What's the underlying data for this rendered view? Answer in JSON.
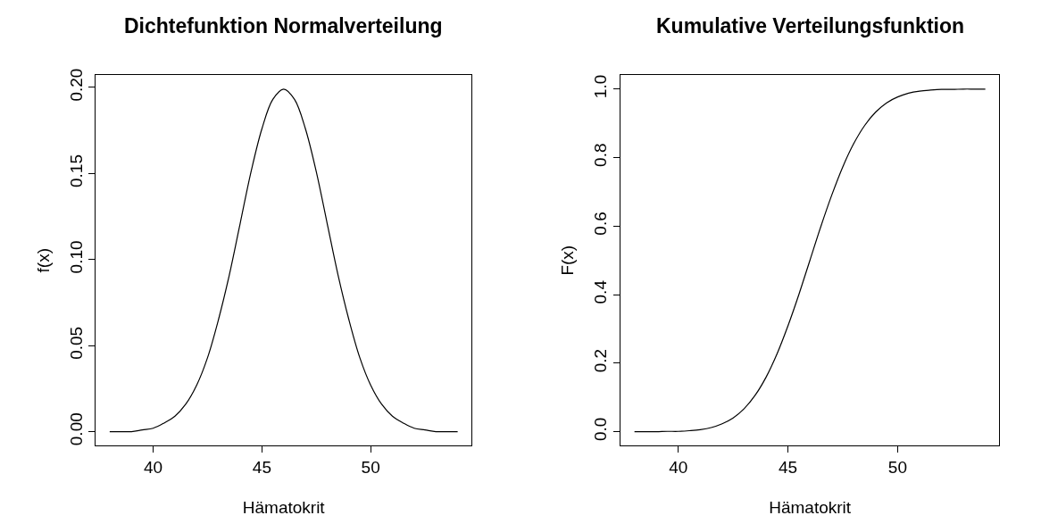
{
  "chart_data": [
    {
      "type": "line",
      "title": "Dichtefunktion Normalverteilung",
      "xlabel": "Hämatokrit",
      "ylabel": "f(x)",
      "x": [
        38,
        38.5,
        39,
        39.5,
        40,
        40.5,
        41,
        41.5,
        42,
        42.5,
        43,
        43.5,
        44,
        44.5,
        45,
        45.5,
        46,
        46.5,
        47,
        47.5,
        48,
        48.5,
        49,
        49.5,
        50,
        50.5,
        51,
        51.5,
        52,
        52.5,
        53,
        53.5,
        54
      ],
      "series": [
        {
          "color": "#000000",
          "values": [
            0.0,
            0.0,
            0.0,
            0.001,
            0.002,
            0.005,
            0.009,
            0.016,
            0.027,
            0.043,
            0.065,
            0.091,
            0.121,
            0.151,
            0.176,
            0.193,
            0.199,
            0.193,
            0.176,
            0.151,
            0.121,
            0.091,
            0.065,
            0.043,
            0.027,
            0.016,
            0.009,
            0.005,
            0.002,
            0.001,
            0.0,
            0.0,
            0.0
          ]
        }
      ],
      "xlim": [
        37.36,
        54.64
      ],
      "xticks": [
        40,
        45,
        50
      ],
      "ylim": [
        -0.008,
        0.207
      ],
      "yticks": [
        {
          "value": 0,
          "label": "0.00"
        },
        0.05,
        {
          "value": 0.1,
          "label": "0.10"
        },
        0.15,
        {
          "value": 0.2,
          "label": "0.20"
        }
      ],
      "line_style": "solid",
      "marker": "none"
    },
    {
      "type": "line",
      "title": "Kumulative Verteilungsfunktion",
      "xlabel": "Hämatokrit",
      "ylabel": "F(x)",
      "x": [
        38,
        38.5,
        39,
        39.5,
        40,
        40.5,
        41,
        41.5,
        42,
        42.5,
        43,
        43.5,
        44,
        44.5,
        45,
        45.5,
        46,
        46.5,
        47,
        47.5,
        48,
        48.5,
        49,
        49.5,
        50,
        50.5,
        51,
        51.5,
        52,
        52.5,
        53,
        53.5,
        54
      ],
      "series": [
        {
          "color": "#000000",
          "values": [
            0.0,
            0.0,
            0.0,
            0.001,
            0.001,
            0.003,
            0.006,
            0.012,
            0.023,
            0.04,
            0.067,
            0.106,
            0.159,
            0.227,
            0.309,
            0.401,
            0.5,
            0.599,
            0.691,
            0.773,
            0.841,
            0.894,
            0.933,
            0.96,
            0.977,
            0.988,
            0.994,
            0.997,
            0.999,
            0.999,
            1.0,
            1.0,
            1.0
          ]
        }
      ],
      "xlim": [
        37.36,
        54.64
      ],
      "xticks": [
        40,
        45,
        50
      ],
      "ylim": [
        -0.04,
        1.04
      ],
      "yticks": [
        {
          "value": 0,
          "label": "0.0"
        },
        0.2,
        0.4,
        0.6,
        0.8,
        {
          "value": 1,
          "label": "1.0"
        }
      ],
      "line_style": "solid",
      "marker": "none"
    }
  ]
}
